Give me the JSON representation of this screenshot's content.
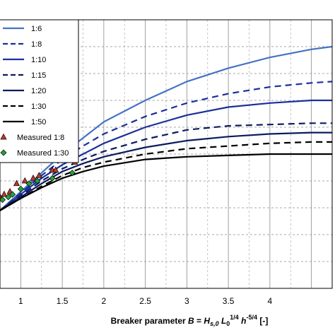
{
  "chart_data": {
    "type": "line",
    "xlabel_parts": {
      "prefix": "Breaker parameter ",
      "B": "B",
      "eq": " = ",
      "H": "H",
      "Hsub": "s,0",
      "L": "L",
      "Lsub": "0",
      "Lsup": "1/4",
      "h": "h",
      "hsup": "-5/4",
      "unit": " [-]"
    },
    "xlim": [
      0.75,
      4.75
    ],
    "ylim": [
      0,
      1
    ],
    "x_ticks": [
      "1",
      "1.5",
      "2",
      "2.5",
      "3",
      "3.5",
      "4"
    ],
    "x_tick_values": [
      1,
      1.5,
      2,
      2.5,
      3,
      3.5,
      4
    ],
    "y_grid_values": [
      0.1,
      0.2,
      0.3,
      0.4,
      0.5,
      0.6,
      0.7,
      0.8,
      0.9
    ],
    "grid": true,
    "legend_position": "top-left",
    "series": [
      {
        "name": "1:6",
        "color": "#4472c4",
        "dash": "solid",
        "x": [
          0.75,
          1.0,
          1.25,
          1.5,
          1.75,
          2.0,
          2.5,
          3.0,
          3.5,
          4.0,
          4.5,
          4.75
        ],
        "y": [
          0.29,
          0.36,
          0.43,
          0.5,
          0.56,
          0.62,
          0.7,
          0.77,
          0.82,
          0.86,
          0.89,
          0.9
        ]
      },
      {
        "name": "1:8",
        "color": "#1c2f9c",
        "dash": "dashed",
        "x": [
          0.75,
          1.0,
          1.25,
          1.5,
          1.75,
          2.0,
          2.5,
          3.0,
          3.5,
          4.0,
          4.5,
          4.75
        ],
        "y": [
          0.29,
          0.355,
          0.42,
          0.48,
          0.53,
          0.575,
          0.64,
          0.69,
          0.725,
          0.75,
          0.765,
          0.77
        ]
      },
      {
        "name": "1:10",
        "color": "#1c2f9c",
        "dash": "solid",
        "x": [
          0.75,
          1.0,
          1.25,
          1.5,
          1.75,
          2.0,
          2.5,
          3.0,
          3.5,
          4.0,
          4.5,
          4.75
        ],
        "y": [
          0.29,
          0.35,
          0.41,
          0.46,
          0.5,
          0.54,
          0.6,
          0.645,
          0.675,
          0.69,
          0.7,
          0.7
        ]
      },
      {
        "name": "1:15",
        "color": "#0d1b5e",
        "dash": "dashed",
        "x": [
          0.75,
          1.0,
          1.25,
          1.5,
          1.75,
          2.0,
          2.5,
          3.0,
          3.5,
          4.0,
          4.5,
          4.75
        ],
        "y": [
          0.29,
          0.345,
          0.4,
          0.445,
          0.48,
          0.51,
          0.555,
          0.59,
          0.605,
          0.61,
          0.615,
          0.615
        ]
      },
      {
        "name": "1:20",
        "color": "#0d1b5e",
        "dash": "solid",
        "x": [
          0.75,
          1.0,
          1.25,
          1.5,
          1.75,
          2.0,
          2.5,
          3.0,
          3.5,
          4.0,
          4.5,
          4.75
        ],
        "y": [
          0.29,
          0.34,
          0.39,
          0.435,
          0.465,
          0.49,
          0.525,
          0.55,
          0.565,
          0.575,
          0.58,
          0.58
        ]
      },
      {
        "name": "1:30",
        "color": "#000000",
        "dash": "dashed",
        "x": [
          0.75,
          1.0,
          1.25,
          1.5,
          1.75,
          2.0,
          2.5,
          3.0,
          3.5,
          4.0,
          4.5,
          4.75
        ],
        "y": [
          0.29,
          0.335,
          0.38,
          0.42,
          0.45,
          0.47,
          0.5,
          0.52,
          0.53,
          0.54,
          0.545,
          0.545
        ]
      },
      {
        "name": "1:50",
        "color": "#000000",
        "dash": "solid",
        "x": [
          0.75,
          1.0,
          1.25,
          1.5,
          1.75,
          2.0,
          2.5,
          3.0,
          3.5,
          4.0,
          4.5,
          4.75
        ],
        "y": [
          0.29,
          0.335,
          0.375,
          0.41,
          0.435,
          0.455,
          0.48,
          0.49,
          0.495,
          0.5,
          0.5,
          0.5
        ]
      }
    ],
    "measured": [
      {
        "name": "Measured 1:8",
        "marker": "triangle",
        "fill": "#c0392b",
        "stroke": "#000000",
        "x": [
          0.75,
          0.8,
          0.87,
          0.95,
          1.05,
          1.15,
          1.22,
          1.38,
          1.42,
          1.65
        ],
        "y": [
          0.34,
          0.35,
          0.36,
          0.39,
          0.4,
          0.41,
          0.42,
          0.44,
          0.44,
          0.47
        ]
      },
      {
        "name": "Measured 1:30",
        "marker": "diamond",
        "fill": "#22a33a",
        "stroke": "#000000",
        "x": [
          0.78,
          0.85,
          0.9,
          1.0,
          1.1,
          1.2,
          1.38,
          1.62
        ],
        "y": [
          0.33,
          0.34,
          0.35,
          0.37,
          0.39,
          0.4,
          0.41,
          0.43
        ]
      }
    ]
  }
}
